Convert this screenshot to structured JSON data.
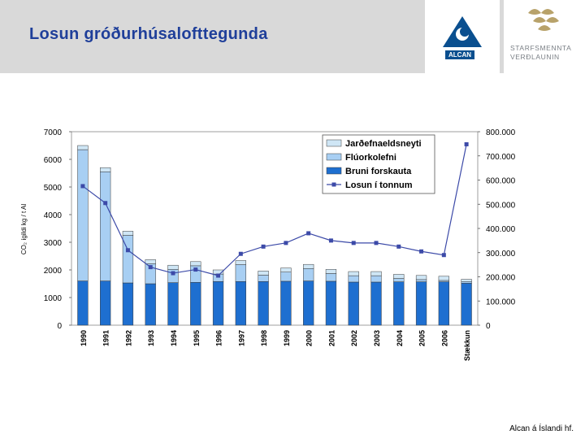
{
  "header": {
    "title": "Losun gróðurhúsalofttegunda"
  },
  "logos": {
    "alcan": "ALCAN",
    "starf_line1": "STARFSMENNTA",
    "starf_line2": "VERÐLAUNIN"
  },
  "footer": {
    "text": "Alcan á Íslandi hf."
  },
  "colors": {
    "header_bg": "#d9d9d9",
    "title": "#1f3f9a",
    "bruni": "#1e6fd0",
    "fluor": "#a8cff3",
    "jardefna": "#cfe6f5",
    "line": "#3c4aa8"
  },
  "chart_data": {
    "type": "bar",
    "stacked": true,
    "categories": [
      "1990",
      "1991",
      "1992",
      "1993",
      "1994",
      "1995",
      "1996",
      "1997",
      "1998",
      "1999",
      "2000",
      "2001",
      "2002",
      "2003",
      "2004",
      "2005",
      "2006",
      "Stækkun"
    ],
    "ylabel": "CO₂ ígildi kg / t Al",
    "ylim": [
      0,
      7000
    ],
    "yticks": [
      "0",
      "1000",
      "2000",
      "3000",
      "4000",
      "5000",
      "6000",
      "7000"
    ],
    "y2lim": [
      0,
      800000
    ],
    "y2ticks": [
      "0",
      "100.000",
      "200.000",
      "300.000",
      "400.000",
      "500.000",
      "600.000",
      "700.000",
      "800.000"
    ],
    "legend_position": "top-right",
    "series": [
      {
        "name": "Bruni forskauta",
        "axis": "left",
        "values": [
          1600,
          1600,
          1530,
          1500,
          1540,
          1550,
          1580,
          1580,
          1580,
          1590,
          1600,
          1590,
          1560,
          1560,
          1570,
          1570,
          1570,
          1520
        ]
      },
      {
        "name": "Flúorkolefni",
        "axis": "left",
        "values": [
          4750,
          3950,
          1720,
          720,
          480,
          600,
          270,
          610,
          230,
          330,
          450,
          280,
          230,
          230,
          120,
          80,
          50,
          60
        ]
      },
      {
        "name": "Jarðefnaeldsneyti",
        "axis": "left",
        "values": [
          150,
          150,
          150,
          150,
          150,
          150,
          150,
          150,
          150,
          150,
          150,
          150,
          150,
          150,
          150,
          150,
          150,
          80
        ]
      },
      {
        "name": "Losun í tonnum",
        "axis": "right",
        "type": "line",
        "values": [
          575000,
          505000,
          310000,
          240000,
          215000,
          230000,
          205000,
          295000,
          325000,
          340000,
          380000,
          350000,
          340000,
          340000,
          325000,
          305000,
          290000,
          748000
        ]
      }
    ]
  }
}
